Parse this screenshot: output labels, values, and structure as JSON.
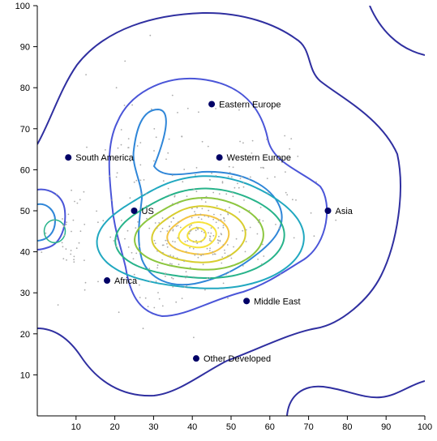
{
  "chart_data": {
    "type": "scatter",
    "title": "",
    "xlabel": "",
    "ylabel": "",
    "xlim": [
      0,
      100
    ],
    "ylim": [
      0,
      100
    ],
    "xticks": [
      10,
      20,
      30,
      40,
      50,
      60,
      70,
      80,
      90,
      100
    ],
    "yticks": [
      10,
      20,
      30,
      40,
      50,
      60,
      70,
      80,
      90,
      100
    ],
    "grid": false,
    "legend": "none",
    "overlay": "density contours of scatter points, levels colored from dark blue (outer) to yellow (inner)",
    "contour_colors": [
      "#2f2fa0",
      "#4a55d8",
      "#2f86d8",
      "#21a8c0",
      "#27b38a",
      "#8cc63f",
      "#d8cd2e",
      "#f4c542",
      "#f6e23a"
    ],
    "point_color": "#aaaaaa",
    "marker_color": "#000066",
    "labeled_points": [
      {
        "label": "Eastern Europe",
        "x": 45,
        "y": 76
      },
      {
        "label": "South America",
        "x": 8,
        "y": 63
      },
      {
        "label": "Western Europe",
        "x": 47,
        "y": 63
      },
      {
        "label": "US",
        "x": 25,
        "y": 50
      },
      {
        "label": "Asia",
        "x": 75,
        "y": 50
      },
      {
        "label": "Africa",
        "x": 18,
        "y": 33
      },
      {
        "label": "Middle East",
        "x": 54,
        "y": 28
      },
      {
        "label": "Other Developed",
        "x": 41,
        "y": 14
      }
    ]
  }
}
